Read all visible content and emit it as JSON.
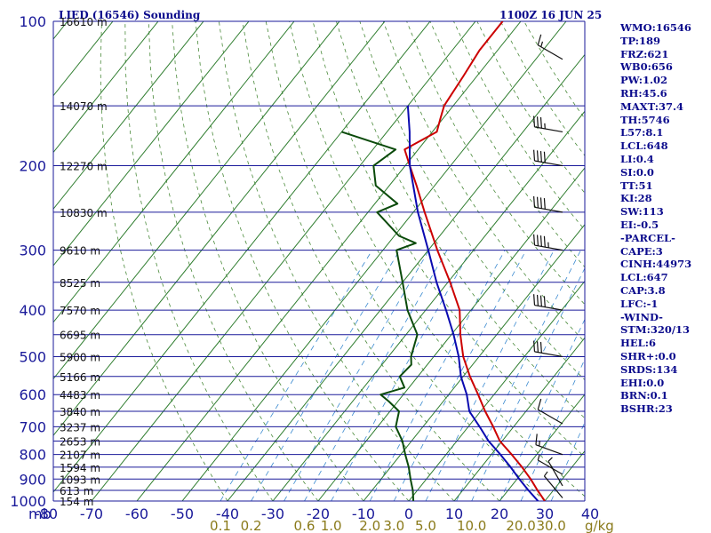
{
  "header": {
    "title": "LIED (16546) Sounding",
    "time": "1100Z 16 JUN 25"
  },
  "chart_data": {
    "type": "skew-t",
    "pressure_unit_label": "mb",
    "pressure_ticks": [
      100,
      200,
      300,
      400,
      500,
      600,
      700,
      800,
      900,
      1000
    ],
    "height_labels": [
      {
        "p": 100,
        "text": "16610 m"
      },
      {
        "p": 150,
        "text": "14070 m"
      },
      {
        "p": 200,
        "text": "12270 m"
      },
      {
        "p": 250,
        "text": "10830 m"
      },
      {
        "p": 300,
        "text": "9610 m"
      },
      {
        "p": 350,
        "text": "8525 m"
      },
      {
        "p": 400,
        "text": "7570 m"
      },
      {
        "p": 450,
        "text": "6695 m"
      },
      {
        "p": 500,
        "text": "5900 m"
      },
      {
        "p": 550,
        "text": "5166 m"
      },
      {
        "p": 600,
        "text": "4483 m"
      },
      {
        "p": 650,
        "text": "3840 m"
      },
      {
        "p": 700,
        "text": "3237 m"
      },
      {
        "p": 750,
        "text": "2653 m"
      },
      {
        "p": 800,
        "text": "2107 m"
      },
      {
        "p": 850,
        "text": "1594 m"
      },
      {
        "p": 900,
        "text": "1093 m"
      },
      {
        "p": 950,
        "text": "613 m"
      },
      {
        "p": 1000,
        "text": "154 m"
      }
    ],
    "temperature_ticks": [
      "-80",
      "-70",
      "-60",
      "-50",
      "-40",
      "-30",
      "-20",
      "-10",
      "0",
      "10",
      "20",
      "30",
      "40"
    ],
    "mixing_ratio_labels": [
      {
        "w": 0.1,
        "text": "0.1"
      },
      {
        "w": 0.2,
        "text": "0.2"
      },
      {
        "w": 0.6,
        "text": "0.6"
      },
      {
        "w": 1.0,
        "text": "1.0"
      },
      {
        "w": 2.0,
        "text": "2.0"
      },
      {
        "w": 3.0,
        "text": "3.0"
      },
      {
        "w": 5.0,
        "text": "5.0"
      },
      {
        "w": 10.0,
        "text": "10.0"
      },
      {
        "w": 20.0,
        "text": "20.0"
      },
      {
        "w": 30.0,
        "text": "30.0"
      }
    ],
    "mixing_ratio_unit": "g/kg",
    "series": [
      {
        "color": "#cc0000",
        "points": [
          [
            1000,
            30.0
          ],
          [
            950,
            26.5
          ],
          [
            900,
            23.0
          ],
          [
            850,
            19.0
          ],
          [
            800,
            14.5
          ],
          [
            750,
            9.5
          ],
          [
            700,
            5.5
          ],
          [
            650,
            1.0
          ],
          [
            600,
            -3.5
          ],
          [
            550,
            -8.5
          ],
          [
            500,
            -13.5
          ],
          [
            450,
            -18.0
          ],
          [
            400,
            -22.5
          ],
          [
            350,
            -29.5
          ],
          [
            300,
            -38.0
          ],
          [
            250,
            -47.5
          ],
          [
            220,
            -54.0
          ],
          [
            200,
            -59.0
          ],
          [
            185,
            -63.0
          ],
          [
            170,
            -59.0
          ],
          [
            160,
            -60.5
          ],
          [
            150,
            -62.0
          ],
          [
            130,
            -63.0
          ],
          [
            115,
            -64.0
          ],
          [
            100,
            -64.0
          ]
        ]
      },
      {
        "color": "#0a4a0a",
        "points": [
          [
            1000,
            1.0
          ],
          [
            950,
            -1.0
          ],
          [
            900,
            -3.5
          ],
          [
            850,
            -6.0
          ],
          [
            800,
            -9.0
          ],
          [
            750,
            -12.0
          ],
          [
            700,
            -16.0
          ],
          [
            650,
            -18.0
          ],
          [
            620,
            -22.0
          ],
          [
            600,
            -25.0
          ],
          [
            580,
            -21.0
          ],
          [
            550,
            -24.0
          ],
          [
            520,
            -23.5
          ],
          [
            500,
            -25.0
          ],
          [
            450,
            -27.5
          ],
          [
            400,
            -34.0
          ],
          [
            350,
            -40.0
          ],
          [
            300,
            -47.0
          ],
          [
            290,
            -44.0
          ],
          [
            280,
            -49.0
          ],
          [
            250,
            -58.0
          ],
          [
            240,
            -55.0
          ],
          [
            220,
            -63.0
          ],
          [
            200,
            -67.0
          ],
          [
            185,
            -65.0
          ],
          [
            170,
            -80.0
          ]
        ]
      },
      {
        "color": "#0a0ab0",
        "points": [
          [
            1000,
            28.5
          ],
          [
            950,
            24.5
          ],
          [
            900,
            20.5
          ],
          [
            850,
            16.5
          ],
          [
            800,
            12.0
          ],
          [
            750,
            7.0
          ],
          [
            700,
            2.5
          ],
          [
            650,
            -2.5
          ],
          [
            600,
            -6.0
          ],
          [
            550,
            -10.5
          ],
          [
            500,
            -14.5
          ],
          [
            450,
            -19.5
          ],
          [
            400,
            -25.5
          ],
          [
            350,
            -32.5
          ],
          [
            300,
            -40.0
          ],
          [
            250,
            -49.0
          ],
          [
            200,
            -59.0
          ],
          [
            170,
            -65.0
          ],
          [
            150,
            -70.0
          ]
        ]
      }
    ],
    "wind_barbs": [
      {
        "p": 985,
        "dir": 320,
        "spd": 5
      },
      {
        "p": 930,
        "dir": 330,
        "spd": 5
      },
      {
        "p": 880,
        "dir": 300,
        "spd": 5
      },
      {
        "p": 800,
        "dir": 290,
        "spd": 15
      },
      {
        "p": 690,
        "dir": 300,
        "spd": 10
      },
      {
        "p": 500,
        "dir": 280,
        "spd": 30
      },
      {
        "p": 400,
        "dir": 280,
        "spd": 40
      },
      {
        "p": 300,
        "dir": 280,
        "spd": 45
      },
      {
        "p": 250,
        "dir": 280,
        "spd": 40
      },
      {
        "p": 200,
        "dir": 280,
        "spd": 40
      },
      {
        "p": 170,
        "dir": 280,
        "spd": 35
      },
      {
        "p": 120,
        "dir": 300,
        "spd": 15
      }
    ]
  },
  "indices": [
    "WMO:16546",
    "TP:189",
    "FRZ:621",
    "WB0:656",
    "PW:1.02",
    "RH:45.6",
    "MAXT:37.4",
    "TH:5746",
    "L57:8.1",
    "LCL:648",
    "LI:0.4",
    "SI:0.0",
    "TT:51",
    "KI:28",
    "SW:113",
    "EI:-0.5",
    "-PARCEL-",
    "CAPE:3",
    "CINH:44973",
    "LCL:647",
    "CAP:3.8",
    "LFC:-1",
    "-WIND-",
    "STM:320/13",
    "HEL:6",
    "SHR+:0.0",
    "SRDS:134",
    "EHI:0.0",
    "BRN:0.1",
    "BSHR:23"
  ]
}
